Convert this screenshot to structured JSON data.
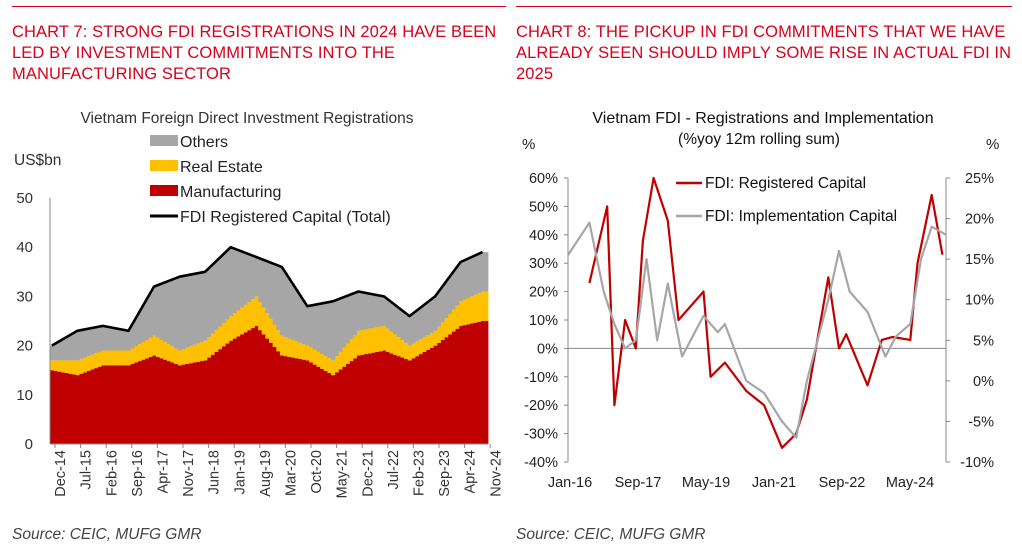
{
  "chart7": {
    "heading": "CHART 7: STRONG FDI REGISTRATIONS IN 2024 HAVE BEEN LED BY INVESTMENT COMMITMENTS INTO THE MANUFACTURING SECTOR",
    "source": "Source: CEIC, MUFG GMR"
  },
  "chart8": {
    "heading": "CHART 8: THE PICKUP IN FDI COMMITMENTS THAT WE HAVE ALREADY SEEN SHOULD IMPLY SOME RISE IN ACTUAL FDI IN 2025",
    "source": "Source: CEIC, MUFG GMR"
  },
  "colors": {
    "accent": "#d9001b",
    "manufacturing": "#c00000",
    "real_estate": "#ffc000",
    "others": "#a6a6a6",
    "total": "#000000",
    "registered": "#c00000",
    "implementation": "#a6a6a6"
  },
  "chart_data": [
    {
      "type": "area",
      "title": "Vietnam Foreign Direct Investment Registrations",
      "ylabel": "US$bn",
      "ylim": [
        0,
        50
      ],
      "yticks": [
        "0",
        "10",
        "20",
        "30",
        "40",
        "50"
      ],
      "xticks": [
        "Dec-14",
        "Jul-15",
        "Feb-16",
        "Sep-16",
        "Apr-17",
        "Nov-17",
        "Jun-18",
        "Jan-19",
        "Aug-19",
        "Mar-20",
        "Oct-20",
        "May-21",
        "Dec-21",
        "Jul-22",
        "Feb-23",
        "Sep-23",
        "Apr-24",
        "Nov-24"
      ],
      "legend": [
        "Others",
        "Real Estate",
        "Manufacturing",
        "FDI Registered Capital (Total)"
      ],
      "legend_position": "top",
      "x_start": "2014-12",
      "x_end": "2024-11",
      "series": [
        {
          "name": "Manufacturing",
          "kind": "stacked-area",
          "months": [
            "2014-12",
            "2015-07",
            "2016-02",
            "2016-09",
            "2017-04",
            "2017-11",
            "2018-06",
            "2019-01",
            "2019-08",
            "2020-03",
            "2020-10",
            "2021-05",
            "2021-12",
            "2022-07",
            "2023-02",
            "2023-09",
            "2024-04",
            "2024-10"
          ],
          "values": [
            15,
            14,
            16,
            16,
            18,
            16,
            17,
            21,
            24,
            18,
            17,
            14,
            18,
            19,
            17,
            20,
            24,
            25
          ]
        },
        {
          "name": "Real Estate",
          "kind": "stacked-area",
          "months": [
            "2014-12",
            "2015-07",
            "2016-02",
            "2016-09",
            "2017-04",
            "2017-11",
            "2018-06",
            "2019-01",
            "2019-08",
            "2020-03",
            "2020-10",
            "2021-05",
            "2021-12",
            "2022-07",
            "2023-02",
            "2023-09",
            "2024-04",
            "2024-10"
          ],
          "values": [
            2,
            3,
            3,
            3,
            4,
            3,
            4,
            5,
            6,
            4,
            3,
            3,
            5,
            5,
            3,
            3,
            5,
            6
          ]
        },
        {
          "name": "Others",
          "kind": "stacked-area",
          "months": [
            "2014-12",
            "2015-07",
            "2016-02",
            "2016-09",
            "2017-04",
            "2017-11",
            "2018-06",
            "2019-01",
            "2019-08",
            "2020-03",
            "2020-10",
            "2021-05",
            "2021-12",
            "2022-07",
            "2023-02",
            "2023-09",
            "2024-04",
            "2024-10"
          ],
          "values": [
            3,
            6,
            5,
            4,
            10,
            15,
            14,
            14,
            8,
            14,
            8,
            12,
            8,
            6,
            6,
            7,
            8,
            8
          ]
        },
        {
          "name": "FDI Registered Capital (Total)",
          "kind": "line",
          "months": [
            "2014-12",
            "2015-07",
            "2016-02",
            "2016-09",
            "2017-04",
            "2017-11",
            "2018-06",
            "2019-01",
            "2019-08",
            "2020-03",
            "2020-10",
            "2021-05",
            "2021-12",
            "2022-07",
            "2023-02",
            "2023-09",
            "2024-04",
            "2024-10"
          ],
          "values": [
            20,
            23,
            24,
            23,
            32,
            34,
            35,
            40,
            38,
            36,
            28,
            29,
            31,
            30,
            26,
            30,
            37,
            39
          ]
        }
      ]
    },
    {
      "type": "line",
      "title": "Vietnam FDI - Registrations and Implementation",
      "subtitle": "(%yoy 12m rolling sum)",
      "y_left_label": "%",
      "y_right_label": "%",
      "ylim_left": [
        -40,
        60
      ],
      "ylim_right": [
        -10,
        25
      ],
      "yticks_left": [
        "60%",
        "50%",
        "40%",
        "30%",
        "20%",
        "10%",
        "0%",
        "-10%",
        "-20%",
        "-30%",
        "-40%"
      ],
      "yticks_right": [
        "25%",
        "20%",
        "15%",
        "10%",
        "5%",
        "0%",
        "-5%",
        "-10%"
      ],
      "xticks": [
        "Jan-16",
        "Sep-17",
        "May-19",
        "Jan-21",
        "Sep-22",
        "May-24"
      ],
      "legend": [
        "FDI: Registered Capital",
        "FDI: Implementation Capital"
      ],
      "x_start": "2016-01",
      "x_end": "2024-11",
      "series": [
        {
          "name": "FDI: Registered Capital",
          "axis": "left",
          "x": [
            "2016-07",
            "2016-12",
            "2017-02",
            "2017-05",
            "2017-08",
            "2017-10",
            "2018-01",
            "2018-05",
            "2018-08",
            "2019-03",
            "2019-05",
            "2019-09",
            "2020-03",
            "2020-08",
            "2021-01",
            "2021-05",
            "2021-08",
            "2022-02",
            "2022-05",
            "2022-07",
            "2023-01",
            "2023-05",
            "2023-08",
            "2024-01",
            "2024-03",
            "2024-07",
            "2024-10"
          ],
          "values": [
            23,
            50,
            -20,
            10,
            0,
            38,
            60,
            45,
            10,
            20,
            -10,
            -5,
            -15,
            -20,
            -35,
            -30,
            -18,
            25,
            0,
            5,
            -13,
            3,
            4,
            3,
            30,
            54,
            33
          ]
        },
        {
          "name": "FDI: Implementation Capital",
          "axis": "right",
          "x": [
            "2016-01",
            "2016-07",
            "2016-11",
            "2017-02",
            "2017-05",
            "2017-08",
            "2017-11",
            "2018-02",
            "2018-05",
            "2018-09",
            "2019-03",
            "2019-07",
            "2019-09",
            "2020-03",
            "2020-08",
            "2021-01",
            "2021-05",
            "2021-08",
            "2022-02",
            "2022-05",
            "2022-08",
            "2023-01",
            "2023-06",
            "2023-09",
            "2024-01",
            "2024-04",
            "2024-07",
            "2024-11"
          ],
          "values": [
            15.5,
            19.5,
            11,
            7,
            4,
            5,
            15,
            5,
            12,
            3,
            8,
            6,
            7,
            0,
            -1.5,
            -5,
            -7,
            0,
            10,
            16,
            11,
            8.5,
            3,
            5.5,
            7,
            15,
            19,
            18
          ]
        }
      ]
    }
  ]
}
